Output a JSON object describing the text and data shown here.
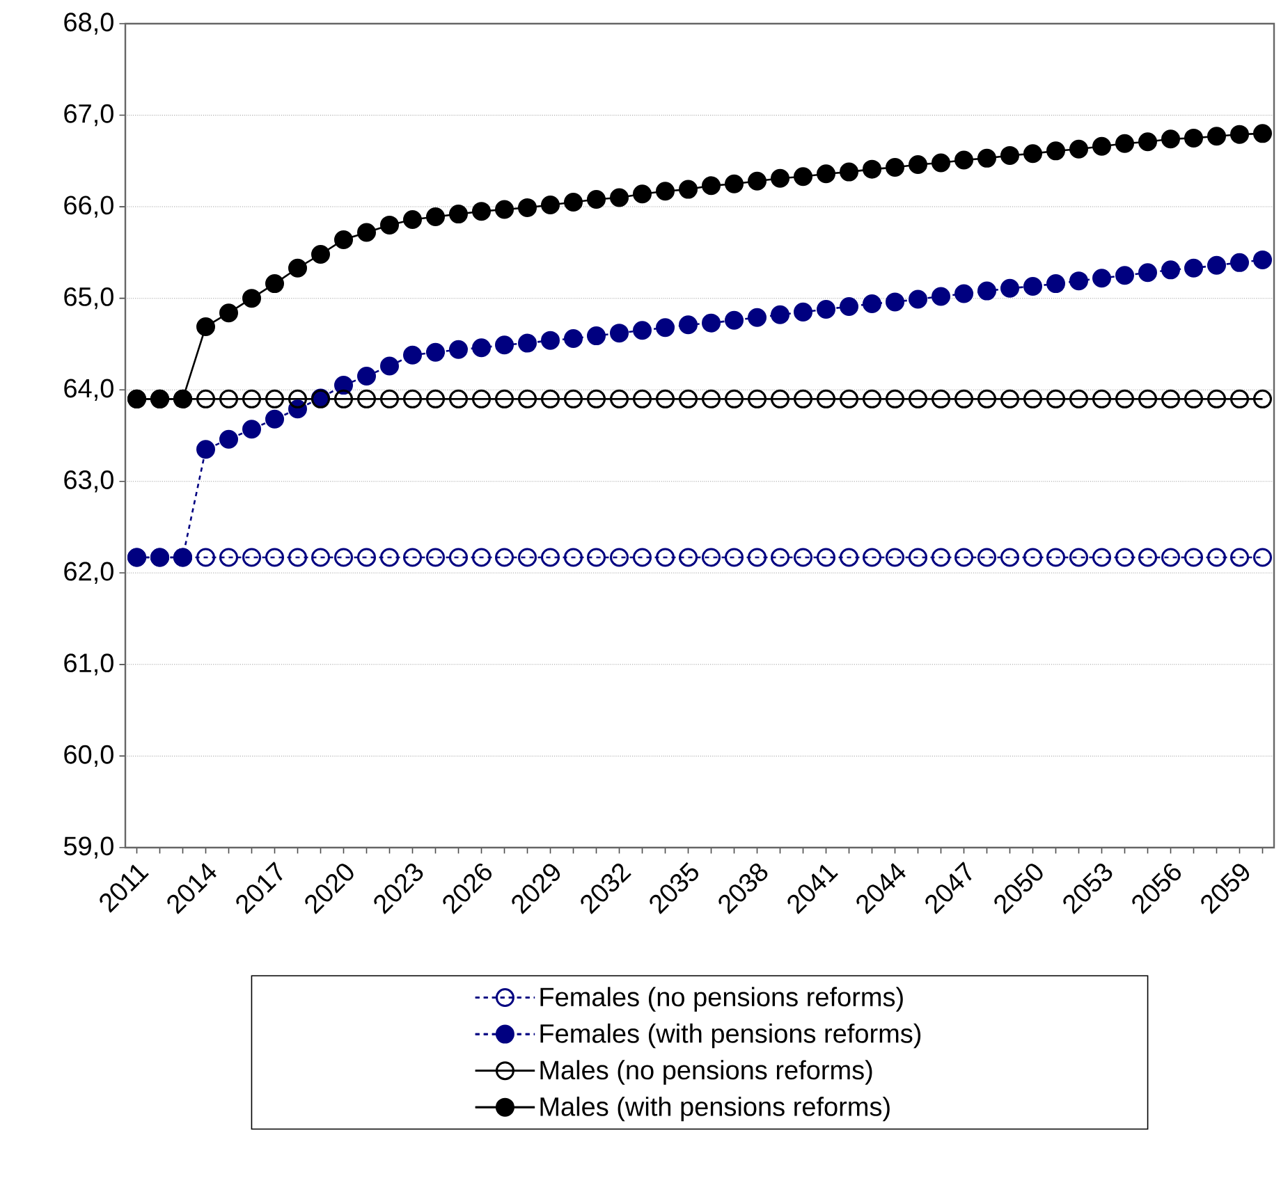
{
  "chart_data": {
    "type": "line",
    "categories": [
      "2011",
      null,
      null,
      "2014",
      null,
      null,
      "2017",
      null,
      null,
      "2020",
      null,
      null,
      "2023",
      null,
      null,
      "2026",
      null,
      null,
      "2029",
      null,
      null,
      "2032",
      null,
      null,
      "2035",
      null,
      null,
      "2038",
      null,
      null,
      "2041",
      null,
      null,
      "2044",
      null,
      null,
      "2047",
      null,
      null,
      "2050",
      null,
      null,
      "2053",
      null,
      null,
      "2056",
      null,
      null,
      "2059",
      null
    ],
    "series": [
      {
        "name": "Females (no pensions reforms)",
        "color": "#000080",
        "line_style": "dashed",
        "marker": "circle-open",
        "values": [
          62.17,
          62.17,
          62.17,
          62.17,
          62.17,
          62.17,
          62.17,
          62.17,
          62.17,
          62.17,
          62.17,
          62.17,
          62.17,
          62.17,
          62.17,
          62.17,
          62.17,
          62.17,
          62.17,
          62.17,
          62.17,
          62.17,
          62.17,
          62.17,
          62.17,
          62.17,
          62.17,
          62.17,
          62.17,
          62.17,
          62.17,
          62.17,
          62.17,
          62.17,
          62.17,
          62.17,
          62.17,
          62.17,
          62.17,
          62.17,
          62.17,
          62.17,
          62.17,
          62.17,
          62.17,
          62.17,
          62.17,
          62.17,
          62.17,
          62.17
        ]
      },
      {
        "name": "Females (with pensions reforms)",
        "color": "#000080",
        "line_style": "dashed",
        "values": [
          62.17,
          62.17,
          62.17,
          63.35,
          63.46,
          63.57,
          63.68,
          63.79,
          63.91,
          64.05,
          64.15,
          64.26,
          64.38,
          64.41,
          64.44,
          64.46,
          64.49,
          64.51,
          64.54,
          64.56,
          64.59,
          64.62,
          64.65,
          64.68,
          64.71,
          64.73,
          64.76,
          64.79,
          64.82,
          64.85,
          64.88,
          64.91,
          64.94,
          64.96,
          64.99,
          65.02,
          65.05,
          65.08,
          65.11,
          65.13,
          65.16,
          65.19,
          65.22,
          65.25,
          65.28,
          65.31,
          65.33,
          65.36,
          65.39,
          65.42
        ]
      },
      {
        "name": "Males (no pensions reforms)",
        "color": "#000000",
        "line_style": "solid",
        "marker": "circle-open",
        "values": [
          63.9,
          63.9,
          63.9,
          63.9,
          63.9,
          63.9,
          63.9,
          63.9,
          63.9,
          63.9,
          63.9,
          63.9,
          63.9,
          63.9,
          63.9,
          63.9,
          63.9,
          63.9,
          63.9,
          63.9,
          63.9,
          63.9,
          63.9,
          63.9,
          63.9,
          63.9,
          63.9,
          63.9,
          63.9,
          63.9,
          63.9,
          63.9,
          63.9,
          63.9,
          63.9,
          63.9,
          63.9,
          63.9,
          63.9,
          63.9,
          63.9,
          63.9,
          63.9,
          63.9,
          63.9,
          63.9,
          63.9,
          63.9,
          63.9,
          63.9
        ]
      },
      {
        "name": "Males (with pensions reforms)",
        "color": "#000000",
        "line_style": "solid",
        "values": [
          63.9,
          63.9,
          63.9,
          64.69,
          64.84,
          65.0,
          65.16,
          65.33,
          65.48,
          65.64,
          65.72,
          65.8,
          65.86,
          65.89,
          65.92,
          65.95,
          65.97,
          65.99,
          66.02,
          66.05,
          66.08,
          66.1,
          66.14,
          66.17,
          66.19,
          66.23,
          66.25,
          66.28,
          66.31,
          66.33,
          66.36,
          66.38,
          66.41,
          66.43,
          66.46,
          66.48,
          66.51,
          66.53,
          66.56,
          66.58,
          66.61,
          66.63,
          66.66,
          66.69,
          66.71,
          66.74,
          66.75,
          66.77,
          66.79,
          66.8
        ]
      }
    ],
    "marker": "circle",
    "ylim": [
      59,
      68
    ],
    "yticks": [
      {
        "value": 59,
        "label": "59,0"
      },
      {
        "value": 60,
        "label": "60,0"
      },
      {
        "value": 61,
        "label": "61,0"
      },
      {
        "value": 62,
        "label": "62,0"
      },
      {
        "value": 63,
        "label": "63,0"
      },
      {
        "value": 64,
        "label": "64,0"
      },
      {
        "value": 65,
        "label": "65,0"
      },
      {
        "value": 66,
        "label": "66,0"
      },
      {
        "value": 67,
        "label": "67,0"
      },
      {
        "value": 68,
        "label": "68,0"
      }
    ],
    "grid": "y",
    "legend": "bottom"
  }
}
